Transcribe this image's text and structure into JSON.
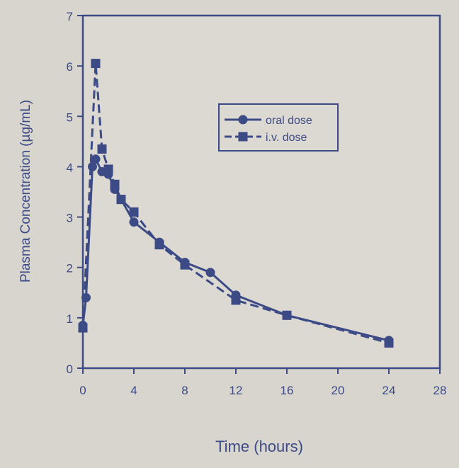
{
  "chart_data": {
    "type": "line",
    "title": "",
    "xlabel": "Time (hours)",
    "ylabel": "Plasma Concentration (µg/mL)",
    "xlim": [
      0,
      28
    ],
    "ylim": [
      0,
      7
    ],
    "xticks": [
      0,
      4,
      8,
      12,
      16,
      20,
      24,
      28
    ],
    "yticks": [
      0,
      1,
      2,
      3,
      4,
      5,
      6,
      7
    ],
    "grid": false,
    "legend_position": "top-right",
    "ink_color": "#3c4a86",
    "series": [
      {
        "name": "oral dose",
        "marker": "circle",
        "line_style": "solid",
        "x": [
          0,
          0.25,
          0.75,
          1,
          1.5,
          2,
          2.5,
          3,
          4,
          6,
          8,
          10,
          12,
          16,
          24
        ],
        "y": [
          0.85,
          1.4,
          4.0,
          4.15,
          3.9,
          3.85,
          3.55,
          3.35,
          2.9,
          2.5,
          2.1,
          1.9,
          1.45,
          1.05,
          0.55
        ]
      },
      {
        "name": "i.v. dose",
        "marker": "square",
        "line_style": "dashed",
        "x": [
          0,
          1,
          1.5,
          2,
          2.5,
          3,
          4,
          6,
          8,
          12,
          16,
          24
        ],
        "y": [
          0.8,
          6.05,
          4.35,
          3.95,
          3.65,
          3.35,
          3.1,
          2.45,
          2.05,
          1.35,
          1.05,
          0.5
        ]
      }
    ]
  }
}
